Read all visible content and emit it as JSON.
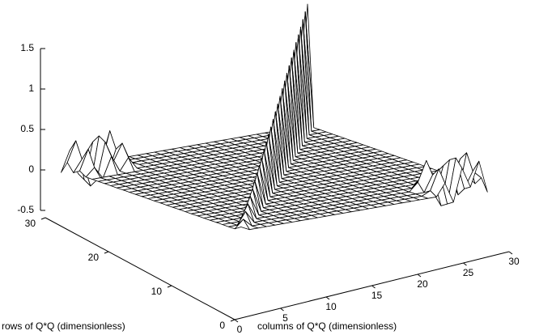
{
  "chart_data": {
    "type": "surface",
    "xlabel": "columns of Q*Q (dimensionless)",
    "ylabel": "rows of Q*Q (dimensionless)",
    "x": [
      1,
      2,
      3,
      4,
      5,
      6,
      7,
      8,
      9,
      10,
      11,
      12,
      13,
      14,
      15,
      16,
      17,
      18,
      19,
      20,
      21,
      22,
      23,
      24,
      25,
      26,
      27,
      28,
      29,
      30
    ],
    "y": [
      1,
      2,
      3,
      4,
      5,
      6,
      7,
      8,
      9,
      10,
      11,
      12,
      13,
      14,
      15,
      16,
      17,
      18,
      19,
      20,
      21,
      22,
      23,
      24,
      25,
      26,
      27,
      28,
      29,
      30
    ],
    "z": [
      [
        0.05,
        0,
        0,
        0,
        0,
        0,
        0,
        0,
        0,
        0,
        0,
        0,
        0,
        0,
        0,
        0,
        0,
        0,
        0,
        0,
        0,
        0,
        0,
        0,
        0.15,
        -0.1,
        0.3,
        0.05,
        0.35,
        -0.05
      ],
      [
        0,
        0.1,
        0,
        0,
        0,
        0,
        0,
        0,
        0,
        0,
        0,
        0,
        0,
        0,
        0,
        0,
        0,
        0,
        0,
        0,
        0,
        0,
        0,
        0.05,
        0.3,
        -0.15,
        0.4,
        0,
        0.2,
        0.1
      ],
      [
        0,
        0,
        0.15,
        0,
        0,
        0,
        0,
        0,
        0,
        0,
        0,
        0,
        0,
        0,
        0,
        0,
        0,
        0,
        0,
        0,
        0,
        0,
        0,
        0,
        0.2,
        -0.2,
        0.35,
        -0.1,
        0.4,
        0
      ],
      [
        0,
        0,
        0,
        0.2,
        0,
        0,
        0,
        0,
        0,
        0,
        0,
        0,
        0,
        0,
        0,
        0,
        0,
        0,
        0,
        0,
        0,
        0,
        0,
        0.1,
        0.35,
        -0.1,
        0.25,
        0.05,
        0.3,
        0.05
      ],
      [
        0,
        0,
        0,
        0,
        0.25,
        0,
        0,
        0,
        0,
        0,
        0,
        0,
        0,
        0,
        0,
        0,
        0,
        0,
        0,
        0,
        0,
        0,
        0,
        0,
        0.1,
        -0.05,
        0.15,
        0,
        0.1,
        0
      ],
      [
        0,
        0,
        0,
        0,
        0,
        0.3,
        0,
        0,
        0,
        0,
        0,
        0,
        0,
        0,
        0,
        0,
        0,
        0,
        0,
        0,
        0,
        0,
        0,
        0,
        0,
        0,
        0,
        0,
        0,
        0
      ],
      [
        0,
        0,
        0,
        0,
        0,
        0,
        0.35,
        0,
        0,
        0,
        0,
        0,
        0,
        0,
        0,
        0,
        0,
        0,
        0,
        0,
        0,
        0,
        0,
        0,
        0,
        0,
        0,
        0,
        0,
        0
      ],
      [
        0,
        0,
        0,
        0,
        0,
        0,
        0,
        0.4,
        0,
        0,
        0,
        0,
        0,
        0,
        0,
        0,
        0,
        0,
        0,
        0,
        0,
        0,
        0,
        0,
        0,
        0,
        0,
        0,
        0,
        0
      ],
      [
        0,
        0,
        0,
        0,
        0,
        0,
        0,
        0,
        0.45,
        0,
        0,
        0,
        0,
        0,
        0,
        0,
        0,
        0,
        0,
        0,
        0,
        0,
        0,
        0,
        0,
        0,
        0,
        0,
        0,
        0
      ],
      [
        0,
        0,
        0,
        0,
        0,
        0,
        0,
        0,
        0,
        0.5,
        0,
        0,
        0,
        0,
        0,
        0,
        0,
        0,
        0,
        0,
        0,
        0,
        0,
        0,
        0,
        0,
        0,
        0,
        0,
        0
      ],
      [
        0,
        0,
        0,
        0,
        0,
        0,
        0,
        0,
        0,
        0,
        0.55,
        0,
        0,
        0,
        0,
        0,
        0,
        0,
        0,
        0,
        0,
        0,
        0,
        0,
        0,
        0,
        0,
        0,
        0,
        0
      ],
      [
        0,
        0,
        0,
        0,
        0,
        0,
        0,
        0,
        0,
        0,
        0,
        0.6,
        0,
        0,
        0,
        0,
        0,
        0,
        0,
        0,
        0,
        0,
        0,
        0,
        0,
        0,
        0,
        0,
        0,
        0
      ],
      [
        0,
        0,
        0,
        0,
        0,
        0,
        0,
        0,
        0,
        0,
        0,
        0,
        0.65,
        0,
        0,
        0,
        0,
        0,
        0,
        0,
        0,
        0,
        0,
        0,
        0,
        0,
        0,
        0,
        0,
        0
      ],
      [
        0,
        0,
        0,
        0,
        0,
        0,
        0,
        0,
        0,
        0,
        0,
        0,
        0,
        0.7,
        0,
        0,
        0,
        0,
        0,
        0,
        0,
        0,
        0,
        0,
        0,
        0,
        0,
        0,
        0,
        0
      ],
      [
        0,
        0,
        0,
        0,
        0,
        0,
        0,
        0,
        0,
        0,
        0,
        0,
        0,
        0,
        0.75,
        0,
        0,
        0,
        0,
        0,
        0,
        0,
        0,
        0,
        0,
        0,
        0,
        0,
        0,
        0
      ],
      [
        0,
        0,
        0,
        0,
        0,
        0,
        0,
        0,
        0,
        0,
        0,
        0,
        0,
        0,
        0,
        0.8,
        0,
        0,
        0,
        0,
        0,
        0,
        0,
        0,
        0,
        0,
        0,
        0,
        0,
        0
      ],
      [
        0,
        0,
        0,
        0,
        0,
        0,
        0,
        0,
        0,
        0,
        0,
        0,
        0,
        0,
        0,
        0,
        0.85,
        0,
        0,
        0,
        0,
        0,
        0,
        0,
        0,
        0,
        0,
        0,
        0,
        0
      ],
      [
        0,
        0,
        0,
        0,
        0,
        0,
        0,
        0,
        0,
        0,
        0,
        0,
        0,
        0,
        0,
        0,
        0,
        0.9,
        0,
        0,
        0,
        0,
        0,
        0,
        0,
        0,
        0,
        0,
        0,
        0
      ],
      [
        0,
        0,
        0,
        0,
        0,
        0,
        0,
        0,
        0,
        0,
        0,
        0,
        0,
        0,
        0,
        0,
        0,
        0,
        0.95,
        0,
        0,
        0,
        0,
        0,
        0,
        0,
        0,
        0,
        0,
        0
      ],
      [
        0,
        0,
        0,
        0,
        0,
        0,
        0,
        0,
        0,
        0,
        0,
        0,
        0,
        0,
        0,
        0,
        0,
        0,
        0,
        1,
        0,
        0,
        0,
        0,
        0,
        0,
        0,
        0,
        0,
        0
      ],
      [
        0,
        0,
        0,
        0,
        0,
        0,
        0,
        0,
        0,
        0,
        0,
        0,
        0,
        0,
        0,
        0,
        0,
        0,
        0,
        0,
        1.05,
        0,
        0,
        0,
        0,
        0,
        0,
        0,
        0,
        0
      ],
      [
        0,
        0,
        0,
        0,
        0,
        0,
        0,
        0,
        0,
        0,
        0,
        0,
        0,
        0,
        0,
        0,
        0,
        0,
        0,
        0,
        0,
        1.1,
        0,
        0,
        0,
        0,
        0,
        0,
        0,
        0
      ],
      [
        0,
        0,
        0,
        0,
        0,
        0,
        0,
        0,
        0,
        0,
        0,
        0,
        0,
        0,
        0,
        0,
        0,
        0,
        0,
        0,
        0,
        0,
        1.15,
        0,
        0,
        0,
        0,
        0,
        0,
        0
      ],
      [
        0,
        0,
        0,
        0,
        0,
        0,
        0,
        0,
        0,
        0,
        0,
        0,
        0,
        0,
        0,
        0,
        0,
        0,
        0,
        0,
        0,
        0,
        0,
        1.2,
        0,
        0,
        0,
        0,
        0,
        0
      ],
      [
        0,
        0,
        0,
        0,
        0,
        0,
        0,
        0,
        0,
        0,
        0,
        0,
        0,
        0,
        0,
        0,
        0,
        0,
        0,
        0,
        0,
        0,
        0,
        0,
        1.25,
        0,
        0,
        0,
        0,
        0
      ],
      [
        0,
        0.1,
        -0.05,
        0.2,
        0,
        0.15,
        0,
        0,
        0,
        0,
        0,
        0,
        0,
        0,
        0,
        0,
        0,
        0,
        0,
        0,
        0,
        0,
        0,
        0,
        0,
        1.3,
        0,
        0,
        0,
        0
      ],
      [
        0.05,
        0.3,
        -0.1,
        0.35,
        0.1,
        0.3,
        0.05,
        0,
        0,
        0,
        0,
        0,
        0,
        0,
        0,
        0,
        0,
        0,
        0,
        0,
        0,
        0,
        0,
        0,
        0,
        0,
        1.35,
        0,
        0,
        0
      ],
      [
        0,
        0.15,
        -0.2,
        0.4,
        -0.1,
        0.2,
        0,
        0,
        0,
        0,
        0,
        0,
        0,
        0,
        0,
        0,
        0,
        0,
        0,
        0,
        0,
        0,
        0,
        0,
        0,
        0,
        0,
        1.4,
        0,
        0
      ],
      [
        0.1,
        0.35,
        -0.15,
        0.3,
        0,
        0.4,
        0.05,
        0,
        0,
        0,
        0,
        0,
        0,
        0,
        0,
        0,
        0,
        0,
        0,
        0,
        0,
        0,
        0,
        0,
        0,
        0,
        0,
        0,
        1.45,
        0
      ],
      [
        -0.05,
        0.2,
        -0.1,
        0.15,
        0.05,
        0.1,
        0,
        0,
        0,
        0,
        0,
        0,
        0,
        0,
        0,
        0,
        0,
        0,
        0,
        0,
        0,
        0,
        0,
        0,
        0,
        0,
        0,
        0,
        0,
        1.5
      ]
    ],
    "xlim": [
      0,
      30
    ],
    "xticks": [
      0,
      5,
      10,
      15,
      20,
      25,
      30
    ],
    "ylim": [
      0,
      30
    ],
    "yticks": [
      0,
      10,
      20,
      30
    ],
    "zlim": [
      -0.5,
      1.5
    ],
    "zticks": [
      -0.5,
      0,
      0.5,
      1,
      1.5
    ],
    "color": "#000000"
  }
}
